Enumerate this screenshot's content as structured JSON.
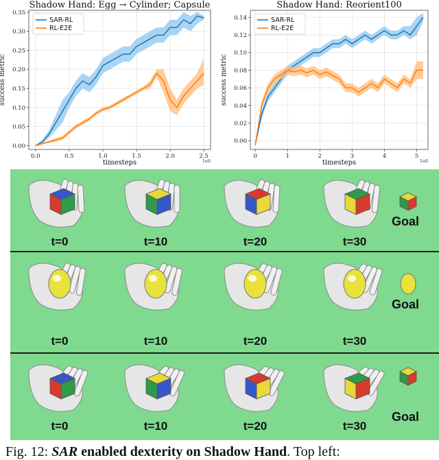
{
  "chart_data": [
    {
      "type": "line",
      "title": "Shadow Hand: Egg → Cylinder; Capsule",
      "xlabel": "timesteps",
      "ylabel": "success metric",
      "x_scale_note": "1e6",
      "xlim": [
        -0.1,
        2.6
      ],
      "ylim": [
        -0.01,
        0.355
      ],
      "xticks": [
        "0.0",
        "0.5",
        "1.0",
        "1.5",
        "2.0",
        "2.5"
      ],
      "xtick_values": [
        0,
        0.5,
        1,
        1.5,
        2,
        2.5
      ],
      "yticks": [
        "0.00",
        "0.05",
        "0.10",
        "0.15",
        "0.20",
        "0.25",
        "0.30",
        "0.35"
      ],
      "ytick_values": [
        0,
        0.05,
        0.1,
        0.15,
        0.2,
        0.25,
        0.3,
        0.35
      ],
      "legend_position": "upper-left",
      "series": [
        {
          "name": "SAR-RL",
          "color": "#1f77b4",
          "band_color": "#8cc6ef",
          "x": [
            0,
            0.1,
            0.2,
            0.3,
            0.4,
            0.5,
            0.6,
            0.7,
            0.8,
            0.9,
            1.0,
            1.1,
            1.2,
            1.3,
            1.4,
            1.5,
            1.6,
            1.7,
            1.8,
            1.9,
            2.0,
            2.1,
            2.2,
            2.3,
            2.4,
            2.5
          ],
          "values": [
            0,
            0.01,
            0.03,
            0.06,
            0.09,
            0.12,
            0.15,
            0.17,
            0.16,
            0.18,
            0.21,
            0.22,
            0.23,
            0.24,
            0.24,
            0.26,
            0.27,
            0.28,
            0.29,
            0.29,
            0.31,
            0.31,
            0.33,
            0.32,
            0.34,
            0.335
          ],
          "lower": [
            0,
            0.005,
            0.02,
            0.04,
            0.06,
            0.1,
            0.13,
            0.15,
            0.14,
            0.16,
            0.19,
            0.2,
            0.21,
            0.22,
            0.22,
            0.24,
            0.25,
            0.26,
            0.27,
            0.27,
            0.29,
            0.29,
            0.31,
            0.3,
            0.32,
            0.33
          ],
          "upper": [
            0,
            0.015,
            0.04,
            0.08,
            0.12,
            0.14,
            0.17,
            0.19,
            0.18,
            0.2,
            0.23,
            0.24,
            0.25,
            0.26,
            0.26,
            0.28,
            0.29,
            0.3,
            0.31,
            0.31,
            0.33,
            0.33,
            0.35,
            0.34,
            0.35,
            0.34
          ]
        },
        {
          "name": "RL-E2E",
          "color": "#ff7f0e",
          "band_color": "#ffbb78",
          "x": [
            0,
            0.1,
            0.2,
            0.3,
            0.4,
            0.5,
            0.6,
            0.7,
            0.8,
            0.9,
            1.0,
            1.1,
            1.2,
            1.3,
            1.4,
            1.5,
            1.6,
            1.7,
            1.8,
            1.9,
            2.0,
            2.1,
            2.2,
            2.3,
            2.4,
            2.5
          ],
          "values": [
            0,
            0.005,
            0.01,
            0.015,
            0.02,
            0.035,
            0.05,
            0.06,
            0.07,
            0.085,
            0.095,
            0.1,
            0.11,
            0.12,
            0.13,
            0.14,
            0.15,
            0.16,
            0.19,
            0.17,
            0.12,
            0.1,
            0.13,
            0.15,
            0.17,
            0.19
          ],
          "lower": [
            0,
            0.003,
            0.007,
            0.01,
            0.015,
            0.03,
            0.045,
            0.055,
            0.065,
            0.08,
            0.09,
            0.095,
            0.105,
            0.115,
            0.125,
            0.135,
            0.145,
            0.15,
            0.18,
            0.14,
            0.09,
            0.08,
            0.11,
            0.13,
            0.15,
            0.16
          ],
          "upper": [
            0,
            0.007,
            0.013,
            0.02,
            0.025,
            0.04,
            0.055,
            0.065,
            0.075,
            0.09,
            0.1,
            0.105,
            0.115,
            0.125,
            0.135,
            0.145,
            0.155,
            0.17,
            0.2,
            0.2,
            0.15,
            0.12,
            0.15,
            0.17,
            0.19,
            0.23
          ]
        }
      ]
    },
    {
      "type": "line",
      "title": "Shadow Hand: Reorient100",
      "xlabel": "timesteps",
      "ylabel": "success metric",
      "x_scale_note": "1e6",
      "xlim": [
        -0.15,
        5.35
      ],
      "ylim": [
        -0.01,
        0.148
      ],
      "xticks": [
        "0",
        "1",
        "2",
        "3",
        "4",
        "5"
      ],
      "xtick_values": [
        0,
        1,
        2,
        3,
        4,
        5
      ],
      "yticks": [
        "0.00",
        "0.02",
        "0.04",
        "0.06",
        "0.08",
        "0.10",
        "0.12",
        "0.14"
      ],
      "ytick_values": [
        0,
        0.02,
        0.04,
        0.06,
        0.08,
        0.1,
        0.12,
        0.14
      ],
      "legend_position": "upper-left",
      "series": [
        {
          "name": "SAR-RL",
          "color": "#1f77b4",
          "band_color": "#8cc6ef",
          "x": [
            0,
            0.2,
            0.4,
            0.6,
            0.8,
            1.0,
            1.2,
            1.4,
            1.6,
            1.8,
            2.0,
            2.2,
            2.4,
            2.6,
            2.8,
            3.0,
            3.2,
            3.4,
            3.6,
            3.8,
            4.0,
            4.2,
            4.4,
            4.6,
            4.8,
            5.0,
            5.2
          ],
          "values": [
            -0.005,
            0.03,
            0.05,
            0.06,
            0.07,
            0.08,
            0.085,
            0.09,
            0.095,
            0.1,
            0.1,
            0.105,
            0.11,
            0.11,
            0.115,
            0.11,
            0.115,
            0.12,
            0.115,
            0.12,
            0.125,
            0.12,
            0.12,
            0.125,
            0.12,
            0.13,
            0.14
          ],
          "lower": [
            -0.006,
            0.025,
            0.045,
            0.055,
            0.065,
            0.075,
            0.08,
            0.085,
            0.09,
            0.095,
            0.095,
            0.1,
            0.105,
            0.105,
            0.11,
            0.105,
            0.11,
            0.115,
            0.11,
            0.115,
            0.12,
            0.115,
            0.115,
            0.12,
            0.115,
            0.12,
            0.135
          ],
          "upper": [
            -0.004,
            0.035,
            0.055,
            0.065,
            0.075,
            0.085,
            0.09,
            0.095,
            0.1,
            0.105,
            0.105,
            0.11,
            0.115,
            0.115,
            0.12,
            0.115,
            0.12,
            0.125,
            0.12,
            0.125,
            0.13,
            0.125,
            0.125,
            0.13,
            0.13,
            0.14,
            0.145
          ]
        },
        {
          "name": "RL-E2E",
          "color": "#ff7f0e",
          "band_color": "#ffbb78",
          "x": [
            0,
            0.2,
            0.4,
            0.6,
            0.8,
            1.0,
            1.2,
            1.4,
            1.6,
            1.8,
            2.0,
            2.2,
            2.4,
            2.6,
            2.8,
            3.0,
            3.2,
            3.4,
            3.6,
            3.8,
            4.0,
            4.2,
            4.4,
            4.6,
            4.8,
            5.0,
            5.2
          ],
          "values": [
            -0.005,
            0.04,
            0.06,
            0.07,
            0.075,
            0.08,
            0.078,
            0.08,
            0.077,
            0.08,
            0.075,
            0.078,
            0.074,
            0.07,
            0.06,
            0.06,
            0.055,
            0.06,
            0.065,
            0.06,
            0.07,
            0.065,
            0.06,
            0.07,
            0.065,
            0.08,
            0.08
          ],
          "lower": [
            -0.006,
            0.035,
            0.055,
            0.065,
            0.07,
            0.075,
            0.073,
            0.075,
            0.072,
            0.075,
            0.07,
            0.073,
            0.069,
            0.065,
            0.055,
            0.055,
            0.05,
            0.055,
            0.06,
            0.055,
            0.065,
            0.06,
            0.055,
            0.065,
            0.06,
            0.07,
            0.07
          ],
          "upper": [
            -0.004,
            0.045,
            0.065,
            0.075,
            0.08,
            0.085,
            0.083,
            0.085,
            0.082,
            0.085,
            0.08,
            0.083,
            0.079,
            0.075,
            0.065,
            0.065,
            0.06,
            0.065,
            0.07,
            0.065,
            0.075,
            0.07,
            0.065,
            0.075,
            0.07,
            0.09,
            0.09
          ]
        }
      ]
    }
  ],
  "figure": {
    "rows": [
      {
        "steps": [
          "t=0",
          "t=10",
          "t=20",
          "t=30"
        ],
        "goal_label": "Goal",
        "object": "cube"
      },
      {
        "steps": [
          "t=0",
          "t=10",
          "t=20",
          "t=30"
        ],
        "goal_label": "Goal",
        "object": "egg"
      },
      {
        "steps": [
          "t=0",
          "t=10",
          "t=20",
          "t=30"
        ],
        "goal_label": "Goal",
        "object": "cube"
      }
    ],
    "background_color": "#7fd98e"
  },
  "caption": {
    "prefix": "Fig. 12: ",
    "bold_italic": "SAR",
    "bold_rest": " enabled dexterity on Shadow Hand",
    "tail": ". Top left:"
  }
}
